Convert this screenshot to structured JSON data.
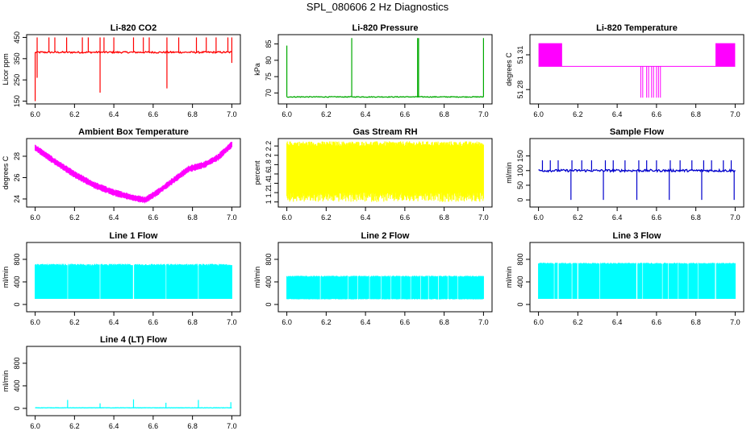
{
  "title": "SPL_080606  2 Hz Diagnostics",
  "chart_data": [
    {
      "type": "line",
      "title": "Li-820 CO2",
      "ylabel": "Licor ppm",
      "color": "#ff0000",
      "xlim": [
        6.0,
        7.0
      ],
      "ylim": [
        150,
        450
      ],
      "xticks": [
        "6.0",
        "6.2",
        "6.4",
        "6.6",
        "6.8",
        "7.0"
      ],
      "yticks": [
        150,
        250,
        350,
        450
      ],
      "style": "baseline",
      "level": 380,
      "noise": 4,
      "spikes": [
        {
          "x": 6.0,
          "y": 150
        },
        {
          "x": 6.01,
          "y": 260
        },
        {
          "x": 6.33,
          "y": 190
        },
        {
          "x": 6.67,
          "y": 210
        },
        {
          "x": 7.0,
          "y": 330
        }
      ],
      "upticks": [
        6.01,
        6.07,
        6.1,
        6.16,
        6.24,
        6.27,
        6.33,
        6.35,
        6.4,
        6.5,
        6.55,
        6.58,
        6.67,
        6.73,
        6.82,
        6.87,
        6.92,
        6.98,
        7.0
      ],
      "uptop": 450
    },
    {
      "type": "line",
      "title": "Li-820 Pressure",
      "ylabel": "kPa",
      "color": "#00aa00",
      "xlim": [
        6.0,
        7.0
      ],
      "ylim": [
        67.5,
        87
      ],
      "xticks": [
        "6.0",
        "6.2",
        "6.4",
        "6.6",
        "6.8",
        "7.0"
      ],
      "yticks": [
        70,
        75,
        80,
        85
      ],
      "style": "baseline",
      "level": 68.8,
      "noise": 0.12,
      "spikes": [
        {
          "x": 6.0,
          "y": 84.5
        },
        {
          "x": 6.33,
          "y": 86.8
        },
        {
          "x": 6.665,
          "y": 86.8
        },
        {
          "x": 6.67,
          "y": 86.8
        },
        {
          "x": 7.0,
          "y": 86.8
        }
      ],
      "upticks": [],
      "uptop": 0
    },
    {
      "type": "line",
      "title": "Li-820 Temperature",
      "ylabel": "degrees C",
      "color": "#ff00ff",
      "xlim": [
        6.0,
        7.0
      ],
      "ylim": [
        51.27,
        51.325
      ],
      "xticks": [
        "6.0",
        "6.2",
        "6.4",
        "6.6",
        "6.8",
        "7.0"
      ],
      "yticks": [
        51.28,
        51.31
      ],
      "ytick_labels": [
        "51 28",
        "51 31"
      ],
      "style": "temp",
      "level": 51.3,
      "high": 51.32,
      "low": 51.273,
      "bands": [
        [
          6.0,
          6.12
        ],
        [
          6.9,
          7.0
        ]
      ],
      "dips": [
        6.52,
        6.53,
        6.55,
        6.56,
        6.575,
        6.585,
        6.6,
        6.61,
        6.62
      ]
    },
    {
      "type": "line",
      "title": "Ambient Box Temperature",
      "ylabel": "degrees C",
      "color": "#ff00ff",
      "xlim": [
        6.0,
        7.0
      ],
      "ylim": [
        23.5,
        29.4
      ],
      "xticks": [
        "6.0",
        "6.2",
        "6.4",
        "6.6",
        "6.8",
        "7.0"
      ],
      "yticks": [
        24,
        26,
        28
      ],
      "style": "band",
      "points": [
        [
          6.0,
          28.8
        ],
        [
          6.1,
          27.5
        ],
        [
          6.2,
          26.3
        ],
        [
          6.3,
          25.3
        ],
        [
          6.4,
          24.6
        ],
        [
          6.5,
          24.1
        ],
        [
          6.56,
          23.9
        ],
        [
          6.62,
          24.6
        ],
        [
          6.7,
          25.7
        ],
        [
          6.78,
          26.8
        ],
        [
          6.86,
          27.2
        ],
        [
          6.93,
          27.9
        ],
        [
          7.0,
          29.1
        ]
      ],
      "width": 0.55
    },
    {
      "type": "line",
      "title": "Gas Stream RH",
      "ylabel": "percent",
      "color": "#ffff00",
      "xlim": [
        6.0,
        7.0
      ],
      "ylim": [
        0.95,
        2.3
      ],
      "xticks": [
        "6.0",
        "6.2",
        "6.4",
        "6.6",
        "6.8",
        "7.0"
      ],
      "yticks": [
        1.0,
        1.2,
        1.4,
        1.6,
        1.8,
        2.0,
        2.2
      ],
      "style": "fill",
      "low": 1.2,
      "high": 2.2,
      "maxlow": 1.0,
      "maxhigh": 2.3
    },
    {
      "type": "line",
      "title": "Sample Flow",
      "ylabel": "ml/min",
      "color": "#0000cc",
      "xlim": [
        6.0,
        7.0
      ],
      "ylim": [
        -15,
        200
      ],
      "xticks": [
        "6.0",
        "6.2",
        "6.4",
        "6.6",
        "6.8",
        "7.0"
      ],
      "yticks": [
        0,
        50,
        100,
        150
      ],
      "style": "baseline",
      "level": 100,
      "noise": 4,
      "spikes": [
        {
          "x": 6.165,
          "y": 0
        },
        {
          "x": 6.33,
          "y": 0
        },
        {
          "x": 6.5,
          "y": 0
        },
        {
          "x": 6.665,
          "y": 0
        },
        {
          "x": 6.83,
          "y": 0
        },
        {
          "x": 6.995,
          "y": 0
        }
      ],
      "upticks": [
        6.02,
        6.06,
        6.1,
        6.17,
        6.22,
        6.27,
        6.34,
        6.38,
        6.44,
        6.51,
        6.55,
        6.6,
        6.67,
        6.72,
        6.78,
        6.84,
        6.88,
        6.94,
        6.98
      ],
      "uptop": 135
    },
    {
      "type": "line",
      "title": "Line 1 Flow",
      "ylabel": "ml/min",
      "color": "#00ffff",
      "xlim": [
        6.0,
        7.0
      ],
      "ylim": [
        -80,
        1050
      ],
      "xticks": [
        "6.0",
        "6.2",
        "6.4",
        "6.6",
        "6.8",
        "7.0"
      ],
      "yticks": [
        0,
        400,
        800
      ],
      "style": "fill",
      "low": 100,
      "high": 690,
      "maxlow": 100,
      "maxhigh": 720,
      "gaps": [
        6.165,
        6.33,
        6.5,
        6.665,
        6.83
      ]
    },
    {
      "type": "line",
      "title": "Line 2 Flow",
      "ylabel": "ml/min",
      "color": "#00ffff",
      "xlim": [
        6.0,
        7.0
      ],
      "ylim": [
        -80,
        1050
      ],
      "xticks": [
        "6.0",
        "6.2",
        "6.4",
        "6.6",
        "6.8",
        "7.0"
      ],
      "yticks": [
        0,
        400,
        800
      ],
      "style": "fill",
      "low": 100,
      "high": 490,
      "maxlow": 90,
      "maxhigh": 510,
      "gaps": [
        6.17,
        6.31,
        6.36,
        6.42,
        6.48,
        6.53,
        6.58,
        6.63,
        6.68,
        6.72,
        6.77,
        6.82,
        6.87
      ]
    },
    {
      "type": "line",
      "title": "Line 3 Flow",
      "ylabel": "ml/min",
      "color": "#00ffff",
      "xlim": [
        6.0,
        7.0
      ],
      "ylim": [
        -80,
        1050
      ],
      "xticks": [
        "6.0",
        "6.2",
        "6.4",
        "6.6",
        "6.8",
        "7.0"
      ],
      "yticks": [
        0,
        400,
        800
      ],
      "style": "fill",
      "low": 100,
      "high": 720,
      "maxlow": 100,
      "maxhigh": 740,
      "gaps": [
        6.08,
        6.1,
        6.17,
        6.2,
        6.31,
        6.5,
        6.53,
        6.63,
        6.66,
        6.71,
        6.76,
        6.81,
        6.9
      ]
    },
    {
      "type": "line",
      "title": "Line 4 (LT) Flow",
      "ylabel": "ml/min",
      "color": "#00ffff",
      "xlim": [
        6.0,
        7.0
      ],
      "ylim": [
        -80,
        1050
      ],
      "xticks": [
        "6.0",
        "6.2",
        "6.4",
        "6.6",
        "6.8",
        "7.0"
      ],
      "yticks": [
        0,
        400,
        800
      ],
      "style": "baseline",
      "level": 10,
      "noise": 3,
      "spikes": [
        {
          "x": 6.165,
          "y": 150
        },
        {
          "x": 6.33,
          "y": 90
        },
        {
          "x": 6.5,
          "y": 160
        },
        {
          "x": 6.665,
          "y": 100
        },
        {
          "x": 6.83,
          "y": 150
        },
        {
          "x": 6.995,
          "y": 110
        }
      ],
      "upticks": [],
      "uptop": 0
    }
  ]
}
